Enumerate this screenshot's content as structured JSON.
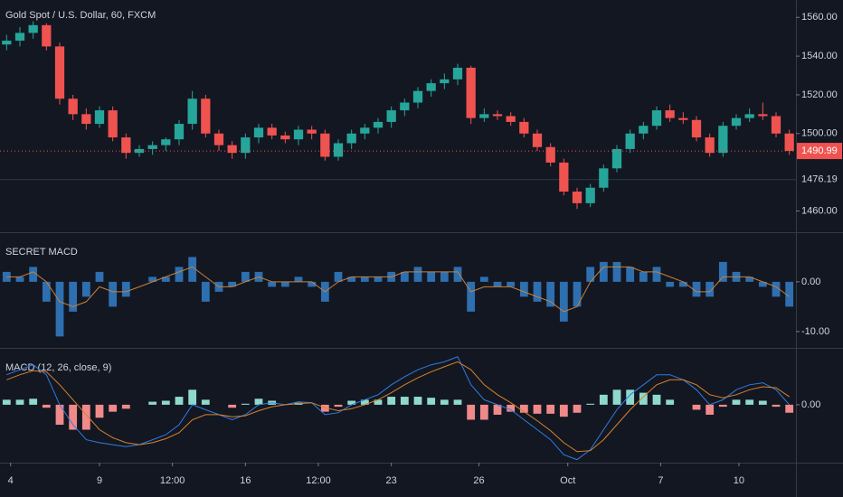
{
  "chart_data": [
    {
      "type": "candlestick",
      "title": "Gold Spot / U.S. Dollar, 60, FXCM",
      "up_color": "#26a69a",
      "down_color": "#ef5350",
      "open": [
        1546,
        1548,
        1552,
        1556,
        1545,
        1518,
        1510,
        1505,
        1512,
        1498,
        1490,
        1492,
        1494,
        1497,
        1505,
        1518,
        1500,
        1494,
        1490,
        1498,
        1503,
        1499,
        1497,
        1502,
        1500,
        1488,
        1495,
        1500,
        1503,
        1506,
        1512,
        1516,
        1522,
        1526,
        1528,
        1534,
        1508,
        1510,
        1509,
        1506,
        1500,
        1493,
        1485,
        1470,
        1464,
        1472,
        1482,
        1492,
        1500,
        1504,
        1512,
        1508,
        1507,
        1498,
        1490,
        1504,
        1508,
        1510,
        1509,
        1500
      ],
      "high": [
        1551,
        1555,
        1558,
        1557,
        1547,
        1520,
        1513,
        1514,
        1514,
        1500,
        1494,
        1496,
        1498,
        1507,
        1522,
        1520,
        1502,
        1496,
        1500,
        1505,
        1505,
        1501,
        1504,
        1504,
        1502,
        1497,
        1502,
        1505,
        1508,
        1514,
        1518,
        1524,
        1528,
        1531,
        1536,
        1535,
        1513,
        1512,
        1511,
        1508,
        1502,
        1495,
        1487,
        1472,
        1474,
        1484,
        1494,
        1502,
        1506,
        1514,
        1515,
        1511,
        1509,
        1500,
        1506,
        1510,
        1513,
        1516,
        1511,
        1502
      ],
      "low": [
        1543,
        1545,
        1549,
        1543,
        1515,
        1507,
        1502,
        1503,
        1496,
        1487,
        1488,
        1489,
        1491,
        1494,
        1502,
        1498,
        1491,
        1487,
        1487,
        1495,
        1497,
        1495,
        1494,
        1497,
        1486,
        1486,
        1492,
        1497,
        1500,
        1503,
        1509,
        1513,
        1519,
        1523,
        1525,
        1505,
        1506,
        1507,
        1504,
        1498,
        1491,
        1483,
        1468,
        1461,
        1462,
        1470,
        1480,
        1490,
        1497,
        1502,
        1506,
        1505,
        1496,
        1488,
        1488,
        1502,
        1506,
        1507,
        1498,
        1489
      ],
      "close": [
        1548,
        1552,
        1556,
        1545,
        1518,
        1510,
        1505,
        1512,
        1498,
        1490,
        1492,
        1494,
        1497,
        1505,
        1518,
        1500,
        1494,
        1490,
        1498,
        1503,
        1499,
        1497,
        1502,
        1500,
        1488,
        1495,
        1500,
        1503,
        1506,
        1512,
        1516,
        1522,
        1526,
        1528,
        1534,
        1508,
        1510,
        1509,
        1506,
        1500,
        1493,
        1485,
        1470,
        1464,
        1472,
        1482,
        1492,
        1500,
        1504,
        1512,
        1508,
        1507,
        1498,
        1490,
        1504,
        1508,
        1510,
        1509,
        1500,
        1490.99
      ],
      "reference_line": 1476.19,
      "reference_color": "#2a3a44",
      "xlim": [
        -0.5,
        59.5
      ],
      "ylim": [
        1449,
        1569
      ],
      "yticks": [
        {
          "value": 1560,
          "label": "1560.00"
        },
        {
          "value": 1540,
          "label": "1540.00"
        },
        {
          "value": 1520,
          "label": "1520.00"
        },
        {
          "value": 1500,
          "label": "1500.00"
        },
        {
          "value": 1460,
          "label": "1460.00"
        }
      ]
    },
    {
      "type": "macd",
      "title": "SECRET MACD",
      "histogram": {
        "color": "#2e6fb0",
        "values": [
          2,
          1,
          3,
          -4,
          -11,
          -6,
          -3,
          2,
          -5,
          -3,
          0,
          1,
          1,
          3,
          5,
          -4,
          -2,
          -1,
          2,
          2,
          -1,
          -1,
          1,
          -1,
          -4,
          2,
          1,
          1,
          1,
          2,
          2,
          3,
          2,
          2,
          3,
          -6,
          1,
          -1,
          -1,
          -3,
          -4,
          -5,
          -8,
          -5,
          3,
          4,
          4,
          3,
          2,
          3,
          -1,
          -1,
          -3,
          -3,
          4,
          2,
          1,
          -1,
          -3,
          -5
        ]
      },
      "lines": [
        {
          "color": "#c8823a",
          "values": [
            1,
            1,
            2,
            0,
            -4,
            -5,
            -4,
            -1,
            -2,
            -2,
            -1,
            0,
            1,
            2,
            3,
            1,
            -1,
            -1,
            0,
            1,
            0,
            0,
            0,
            0,
            -2,
            0,
            1,
            1,
            1,
            1,
            2,
            2,
            2,
            2,
            2,
            -2,
            -1,
            -1,
            -1,
            -2,
            -3,
            -4,
            -6,
            -5,
            0,
            3,
            3,
            3,
            2,
            2,
            1,
            0,
            -2,
            -2,
            1,
            1,
            1,
            0,
            -1,
            -3
          ]
        }
      ],
      "xlim": [
        -0.5,
        59.5
      ],
      "ylim": [
        -13.3,
        9.8
      ],
      "yticks": [
        {
          "value": 0,
          "label": "0.00"
        },
        {
          "value": -10,
          "label": "-10.00"
        }
      ]
    },
    {
      "type": "macd",
      "title": "MACD (12, 26, close, 9)",
      "histogram": {
        "up_color": "#8fd9cc",
        "down_color": "#f08a8a",
        "values": [
          0.5,
          0.5,
          0.6,
          -0.3,
          -2,
          -2.5,
          -2.5,
          -1.3,
          -0.7,
          -0.4,
          0,
          0.3,
          0.4,
          0.8,
          1.5,
          0.5,
          0,
          -0.3,
          0.1,
          0.6,
          0.4,
          0,
          0.2,
          0,
          -0.7,
          -0.2,
          0.4,
          0.5,
          0.5,
          0.8,
          0.8,
          0.8,
          0.7,
          0.5,
          0.5,
          -1.5,
          -1.5,
          -1,
          -0.7,
          -0.8,
          -0.9,
          -0.9,
          -1.2,
          -0.8,
          0.1,
          1,
          1.5,
          1.5,
          1.2,
          1,
          0.5,
          0,
          -0.5,
          -1,
          -0.2,
          0.5,
          0.5,
          0.4,
          -0.2,
          -0.8
        ]
      },
      "lines": [
        {
          "color": "#2f7de1",
          "values": [
            3,
            3.5,
            4,
            3,
            0,
            -2,
            -3.5,
            -3.8,
            -4,
            -4.2,
            -4,
            -3.5,
            -3,
            -2,
            0,
            -0.5,
            -1,
            -1.5,
            -1,
            0,
            0.2,
            0,
            0.3,
            0.2,
            -1,
            -0.8,
            0,
            0.5,
            1,
            2,
            2.8,
            3.5,
            4,
            4.3,
            4.8,
            2,
            0.5,
            0,
            -0.5,
            -1.5,
            -2.5,
            -3.5,
            -5,
            -5.5,
            -4.5,
            -2.5,
            -0.5,
            1,
            2,
            3,
            3,
            2.5,
            1.5,
            0,
            0.5,
            1.5,
            2,
            2.2,
            1.5,
            0
          ]
        },
        {
          "color": "#d9822b",
          "values": [
            2.5,
            3,
            3.4,
            3.3,
            2,
            0.5,
            -1,
            -2.5,
            -3.3,
            -3.8,
            -4,
            -3.8,
            -3.4,
            -2.8,
            -1.5,
            -1,
            -1,
            -1.2,
            -1.1,
            -0.6,
            -0.2,
            0,
            0.1,
            0.2,
            -0.3,
            -0.6,
            -0.4,
            0,
            0.5,
            1.2,
            2,
            2.7,
            3.3,
            3.8,
            4.3,
            3.5,
            2,
            1,
            0.2,
            -0.7,
            -1.6,
            -2.6,
            -3.8,
            -4.7,
            -4.6,
            -3.5,
            -2,
            -0.5,
            0.8,
            2,
            2.5,
            2.5,
            2,
            1,
            0.7,
            1,
            1.5,
            1.8,
            1.7,
            0.8
          ]
        }
      ],
      "xlim": [
        -0.5,
        59.5
      ],
      "ylim": [
        -5.8,
        5.6
      ],
      "yticks": [
        {
          "value": 0,
          "label": "0.00"
        }
      ],
      "xticks": [
        {
          "value": 0.3,
          "label": "4"
        },
        {
          "value": 7,
          "label": "9"
        },
        {
          "value": 12.5,
          "label": "12:00"
        },
        {
          "value": 18,
          "label": "16"
        },
        {
          "value": 23.5,
          "label": "12:00"
        },
        {
          "value": 29,
          "label": "23"
        },
        {
          "value": 35.6,
          "label": "26"
        },
        {
          "value": 42.3,
          "label": "Oct"
        },
        {
          "value": 49.3,
          "label": "7"
        },
        {
          "value": 55.2,
          "label": "10"
        }
      ]
    }
  ]
}
